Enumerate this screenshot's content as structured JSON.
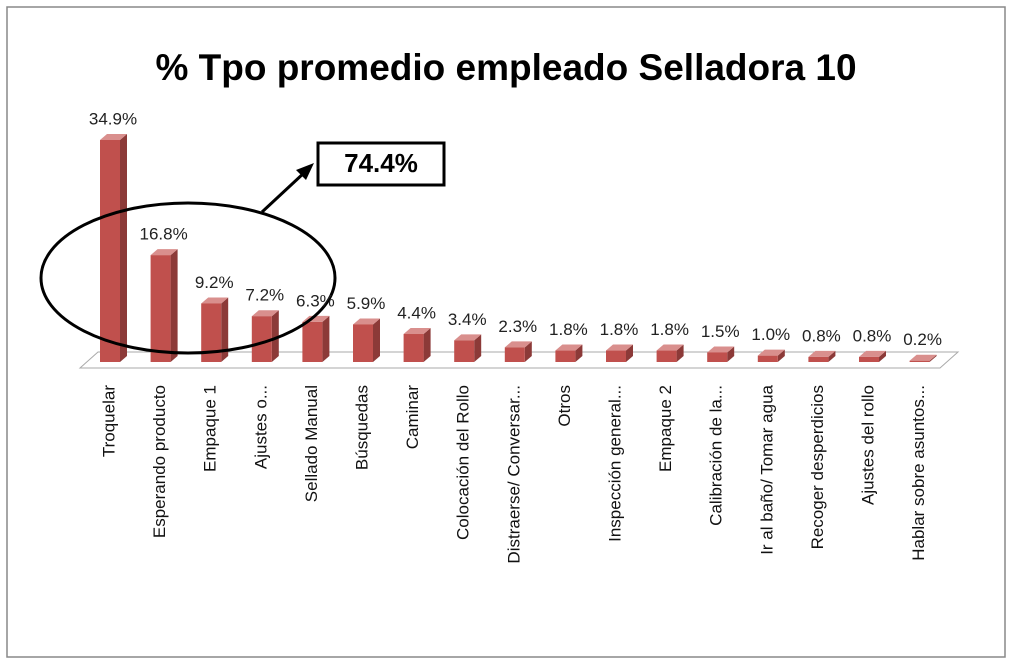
{
  "chart_data": {
    "type": "bar",
    "title": "% Tpo promedio empleado Selladora 10",
    "annotation": "74.4%",
    "categories": [
      "Troquelar",
      "Esperando producto",
      "Empaque 1",
      "Ajustes o...",
      "Sellado Manual",
      "Búsquedas",
      "Caminar",
      "Colocación del Rollo",
      "Distraerse/ Conversar...",
      "Otros",
      "Inspección general...",
      "Empaque 2",
      "Calibración de la...",
      "Ir al baño/ Tomar agua",
      "Recoger desperdicios",
      "Ajustes del rollo",
      "Hablar sobre asuntos..."
    ],
    "values": [
      34.9,
      16.8,
      9.2,
      7.2,
      6.3,
      5.9,
      4.4,
      3.4,
      2.3,
      1.8,
      1.8,
      1.8,
      1.5,
      1.0,
      0.8,
      0.8,
      0.2
    ],
    "value_labels": [
      "34.9%",
      "16.8%",
      "9.2%",
      "7.2%",
      "6.3%",
      "5.9%",
      "4.4%",
      "3.4%",
      "2.3%",
      "1.8%",
      "1.8%",
      "1.8%",
      "1.5%",
      "1.0%",
      "0.8%",
      "0.8%",
      "0.2%"
    ],
    "color": "#c0504d"
  }
}
